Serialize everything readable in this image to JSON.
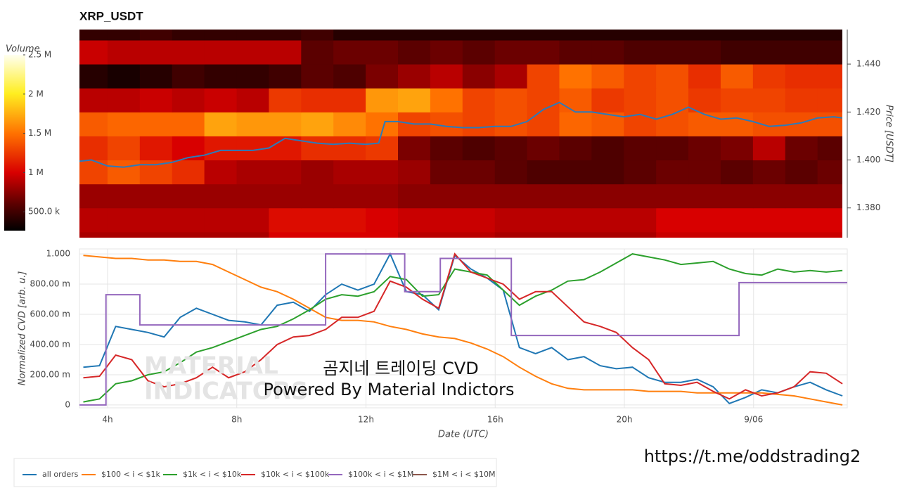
{
  "chart_data": [
    {
      "type": "heatmap",
      "title": "XRP_USDT",
      "x_bins": [
        3,
        4,
        5,
        6,
        7,
        8,
        9,
        10,
        11,
        12,
        13,
        14,
        15,
        16,
        17,
        18,
        19,
        20,
        21,
        22,
        23,
        24,
        25,
        26,
        27
      ],
      "y_bins": [
        1.36,
        1.37,
        1.38,
        1.39,
        1.4,
        1.41,
        1.42,
        1.43,
        1.44,
        1.45,
        1.46
      ],
      "values": [
        [
          850000,
          850000,
          850000,
          850000,
          850000,
          850000,
          1000000,
          1000000,
          1000000,
          1000000,
          900000,
          900000,
          900000,
          850000,
          850000,
          850000,
          850000,
          850000,
          950000,
          950000,
          950000,
          950000,
          950000,
          950000
        ],
        [
          900000,
          900000,
          900000,
          900000,
          900000,
          900000,
          1050000,
          1050000,
          1050000,
          1000000,
          950000,
          950000,
          950000,
          900000,
          900000,
          900000,
          900000,
          900000,
          1000000,
          1000000,
          1000000,
          1000000,
          1000000,
          1000000
        ],
        [
          800000,
          800000,
          800000,
          800000,
          800000,
          800000,
          800000,
          800000,
          800000,
          800000,
          750000,
          750000,
          750000,
          750000,
          750000,
          750000,
          750000,
          750000,
          750000,
          750000,
          750000,
          750000,
          750000,
          750000
        ],
        [
          1300000,
          1400000,
          1300000,
          1200000,
          900000,
          850000,
          850000,
          800000,
          850000,
          850000,
          800000,
          650000,
          650000,
          600000,
          550000,
          550000,
          550000,
          600000,
          650000,
          650000,
          600000,
          650000,
          600000,
          650000
        ],
        [
          1200000,
          1300000,
          1100000,
          1000000,
          1100000,
          1100000,
          1100000,
          1200000,
          1200000,
          1250000,
          700000,
          600000,
          550000,
          600000,
          650000,
          600000,
          550000,
          600000,
          600000,
          650000,
          700000,
          900000,
          650000,
          600000
        ],
        [
          1400000,
          1450000,
          1450000,
          1450000,
          1700000,
          1650000,
          1650000,
          1700000,
          1600000,
          1500000,
          1300000,
          1350000,
          1300000,
          1350000,
          1300000,
          1450000,
          1400000,
          1300000,
          1350000,
          1400000,
          1400000,
          1350000,
          1350000,
          1350000
        ],
        [
          900000,
          900000,
          950000,
          900000,
          950000,
          900000,
          1250000,
          1200000,
          1200000,
          1650000,
          1700000,
          1500000,
          1300000,
          1350000,
          1300000,
          1400000,
          1250000,
          1300000,
          1350000,
          1250000,
          1300000,
          1300000,
          1250000,
          1250000
        ],
        [
          400000,
          350000,
          400000,
          500000,
          450000,
          450000,
          500000,
          600000,
          550000,
          700000,
          800000,
          900000,
          750000,
          850000,
          1300000,
          1500000,
          1400000,
          1300000,
          1350000,
          1200000,
          1400000,
          1250000,
          1200000,
          1200000
        ],
        [
          950000,
          900000,
          900000,
          900000,
          900000,
          900000,
          900000,
          600000,
          650000,
          650000,
          600000,
          650000,
          600000,
          650000,
          650000,
          600000,
          600000,
          550000,
          550000,
          550000,
          500000,
          500000,
          500000,
          500000
        ],
        [
          450000,
          450000,
          500000,
          450000,
          450000,
          450000,
          450000,
          500000,
          400000,
          400000,
          400000,
          400000,
          400000,
          400000,
          400000,
          400000,
          400000,
          400000,
          400000,
          400000,
          400000,
          400000,
          400000,
          400000
        ]
      ],
      "xlim": [
        3.13,
        26.77
      ],
      "ylim": [
        1.3676,
        1.4544
      ],
      "ylabel": "Price [USDT]",
      "yticks": [
        {
          "value": 1.38,
          "label": "1.380"
        },
        {
          "value": 1.4,
          "label": "1.400"
        },
        {
          "value": 1.42,
          "label": "1.420"
        },
        {
          "value": 1.44,
          "label": "1.440"
        }
      ],
      "colorbar": {
        "label": "Volume",
        "lim": [
          260000,
          2500000
        ],
        "ticks": [
          {
            "value": 500000,
            "label": "500.0 k"
          },
          {
            "value": 1000000,
            "label": "1 M"
          },
          {
            "value": 1500000,
            "label": "1.5 M"
          },
          {
            "value": 2000000,
            "label": "2 M"
          },
          {
            "value": 2500000,
            "label": "2.5 M"
          }
        ]
      },
      "price_line": {
        "color": "#2b7bba",
        "x": [
          3.13,
          3.5,
          4,
          4.5,
          5,
          5.5,
          6,
          6.5,
          7,
          7.5,
          8,
          8.5,
          9,
          9.5,
          10,
          10.5,
          11,
          11.5,
          12,
          12.4,
          12.6,
          13,
          13.5,
          14,
          14.5,
          15,
          15.5,
          16,
          16.5,
          17,
          17.5,
          18,
          18.5,
          19,
          19.5,
          20,
          20.5,
          21,
          21.5,
          22,
          22.5,
          23,
          23.5,
          24,
          24.5,
          25,
          25.5,
          26,
          26.5,
          26.77
        ],
        "values": [
          1.3995,
          1.4,
          1.3975,
          1.397,
          1.398,
          1.398,
          1.399,
          1.401,
          1.402,
          1.404,
          1.404,
          1.404,
          1.405,
          1.409,
          1.408,
          1.407,
          1.4065,
          1.407,
          1.4065,
          1.407,
          1.416,
          1.416,
          1.415,
          1.415,
          1.414,
          1.4135,
          1.4135,
          1.414,
          1.414,
          1.416,
          1.421,
          1.424,
          1.42,
          1.42,
          1.419,
          1.418,
          1.419,
          1.417,
          1.419,
          1.422,
          1.419,
          1.417,
          1.4175,
          1.416,
          1.414,
          1.4145,
          1.4155,
          1.4175,
          1.418,
          1.4175
        ]
      }
    },
    {
      "type": "line",
      "x": [
        3.25,
        3.75,
        4.25,
        4.75,
        5.25,
        5.75,
        6.25,
        6.75,
        7.25,
        7.75,
        8.25,
        8.75,
        9.25,
        9.75,
        10.25,
        10.75,
        11.25,
        11.75,
        12.25,
        12.75,
        13.25,
        13.75,
        14.25,
        14.75,
        15.25,
        15.75,
        16.25,
        16.75,
        17.25,
        17.75,
        18.25,
        18.75,
        19.25,
        19.75,
        20.25,
        20.75,
        21.25,
        21.75,
        22.25,
        22.75,
        23.25,
        23.75,
        24.25,
        24.75,
        25.25,
        25.75,
        26.25,
        26.75
      ],
      "series": [
        {
          "name": "all orders",
          "color": "#1f77b4",
          "values": [
            0.25,
            0.26,
            0.52,
            0.5,
            0.48,
            0.45,
            0.58,
            0.64,
            0.6,
            0.56,
            0.55,
            0.53,
            0.66,
            0.68,
            0.62,
            0.73,
            0.8,
            0.76,
            0.8,
            1.0,
            0.75,
            0.73,
            0.63,
            0.99,
            0.9,
            0.84,
            0.76,
            0.38,
            0.34,
            0.38,
            0.3,
            0.32,
            0.26,
            0.24,
            0.25,
            0.18,
            0.15,
            0.15,
            0.17,
            0.12,
            0.01,
            0.05,
            0.1,
            0.08,
            0.12,
            0.15,
            0.1,
            0.06
          ]
        },
        {
          "name": "$100 < i < $1k",
          "color": "#ff7f0e",
          "values": [
            0.99,
            0.98,
            0.97,
            0.97,
            0.96,
            0.96,
            0.95,
            0.95,
            0.93,
            0.88,
            0.83,
            0.78,
            0.75,
            0.7,
            0.64,
            0.58,
            0.56,
            0.56,
            0.55,
            0.52,
            0.5,
            0.47,
            0.45,
            0.44,
            0.41,
            0.37,
            0.32,
            0.25,
            0.19,
            0.14,
            0.11,
            0.1,
            0.1,
            0.1,
            0.1,
            0.09,
            0.09,
            0.09,
            0.08,
            0.08,
            0.08,
            0.08,
            0.08,
            0.07,
            0.06,
            0.04,
            0.02,
            0.0
          ]
        },
        {
          "name": "$1k < i < $10k",
          "color": "#2ca02c",
          "values": [
            0.02,
            0.04,
            0.14,
            0.16,
            0.2,
            0.22,
            0.28,
            0.35,
            0.38,
            0.42,
            0.46,
            0.5,
            0.52,
            0.57,
            0.63,
            0.7,
            0.73,
            0.72,
            0.75,
            0.85,
            0.83,
            0.72,
            0.73,
            0.9,
            0.88,
            0.86,
            0.76,
            0.66,
            0.72,
            0.76,
            0.82,
            0.83,
            0.88,
            0.94,
            1.0,
            0.98,
            0.96,
            0.93,
            0.94,
            0.95,
            0.9,
            0.87,
            0.86,
            0.9,
            0.88,
            0.89,
            0.88,
            0.89
          ]
        },
        {
          "name": "$10k < i < $100k",
          "color": "#d62728",
          "values": [
            0.18,
            0.19,
            0.33,
            0.3,
            0.16,
            0.12,
            0.14,
            0.18,
            0.25,
            0.18,
            0.22,
            0.3,
            0.4,
            0.45,
            0.46,
            0.5,
            0.58,
            0.58,
            0.62,
            0.82,
            0.78,
            0.7,
            0.64,
            1.0,
            0.88,
            0.84,
            0.8,
            0.7,
            0.75,
            0.75,
            0.65,
            0.55,
            0.52,
            0.48,
            0.38,
            0.3,
            0.14,
            0.13,
            0.15,
            0.09,
            0.04,
            0.1,
            0.06,
            0.08,
            0.12,
            0.22,
            0.21,
            0.14
          ]
        },
        {
          "name": "$100k < i < $1M",
          "color": "#9467bd",
          "x": [
            3.13,
            3.95,
            3.95,
            5.0,
            5.0,
            10.75,
            10.75,
            13.2,
            13.2,
            14.3,
            14.3,
            16.5,
            16.5,
            23.55,
            23.55,
            26.9
          ],
          "values": [
            0,
            0,
            0.73,
            0.73,
            0.53,
            0.53,
            1.0,
            1.0,
            0.75,
            0.75,
            0.97,
            0.97,
            0.46,
            0.46,
            0.81,
            0.81
          ]
        },
        {
          "name": "$1M < i < $10M",
          "color": "#8c564b",
          "values": [
            null,
            null,
            null,
            null,
            null,
            null,
            null,
            null,
            null,
            null,
            null,
            null,
            null,
            null,
            null,
            null,
            null,
            null,
            null,
            null,
            null,
            null,
            null,
            null,
            null,
            null,
            null,
            null,
            null,
            null,
            null,
            null,
            null,
            null,
            null,
            null,
            null,
            null,
            null,
            null,
            null,
            null,
            null,
            null,
            null,
            null,
            null,
            null
          ]
        }
      ],
      "xlim": [
        3.13,
        26.9
      ],
      "ylim": [
        -0.019,
        1.033
      ],
      "xlabel": "Date (UTC)",
      "ylabel": "Normalized CVD [arb. u.]",
      "xticks": [
        {
          "value": 4,
          "label": "4h"
        },
        {
          "value": 8,
          "label": "8h"
        },
        {
          "value": 12,
          "label": "12h"
        },
        {
          "value": 16,
          "label": "16h"
        },
        {
          "value": 20,
          "label": "20h"
        },
        {
          "value": 24,
          "label": "9/06"
        }
      ],
      "yticks": [
        0,
        {
          "value": 0.2,
          "label": "200.00 m"
        },
        {
          "value": 0.4,
          "label": "400.00 m"
        },
        {
          "value": 0.6,
          "label": "600.00 m"
        },
        {
          "value": 0.8,
          "label": "800.00 m"
        },
        {
          "value": 1.0,
          "label": "1.000"
        }
      ],
      "grid": true,
      "legend": "bottom-left",
      "annotations": [
        "MATERIAL",
        "INDICATORS",
        "곰지네 트레이딩 CVD",
        "Powered By Material Indictors",
        "https://t.me/oddstrading2"
      ]
    }
  ]
}
